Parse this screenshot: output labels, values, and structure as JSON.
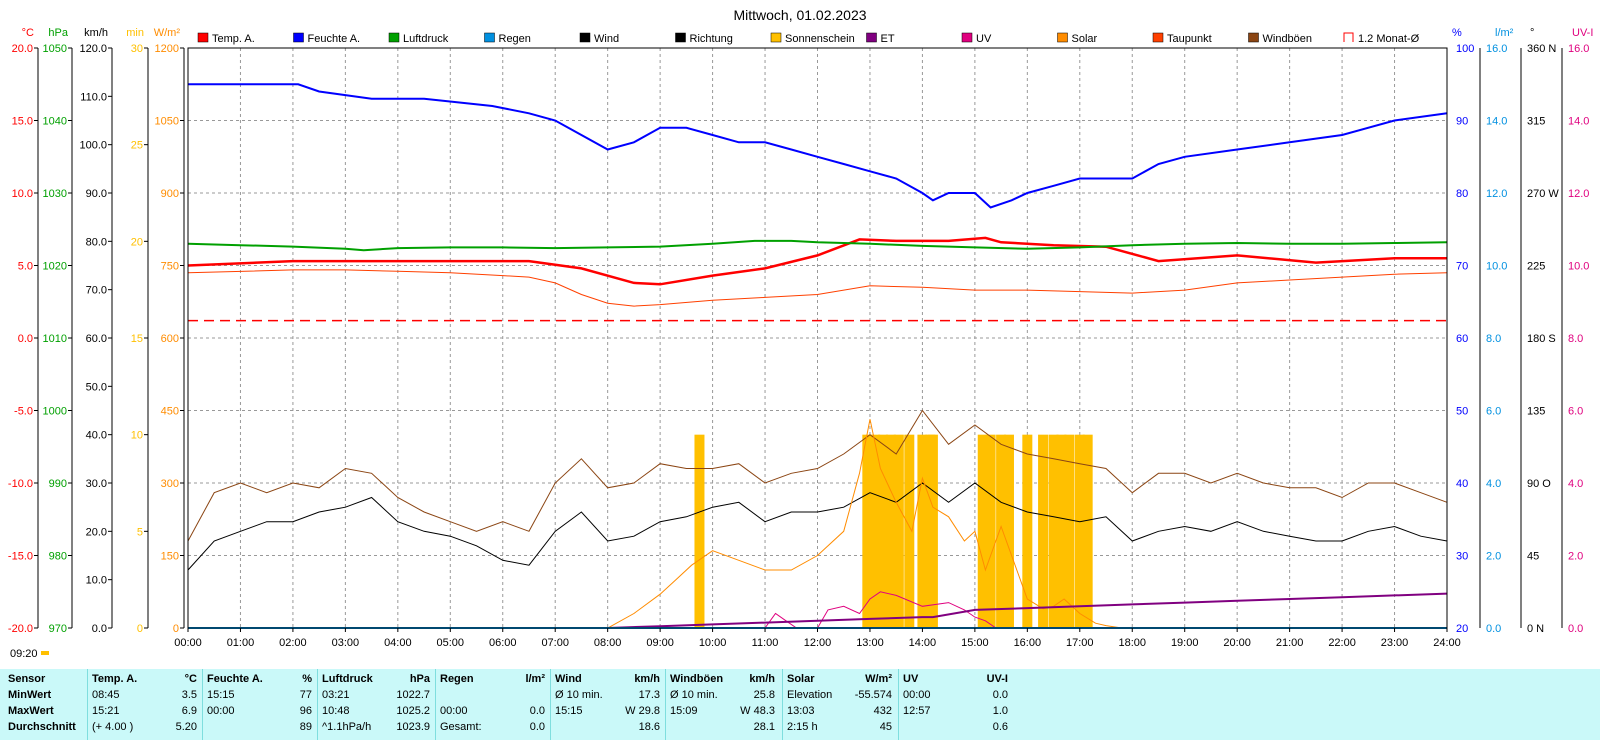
{
  "chart_data": {
    "type": "line",
    "title": "Mittwoch, 01.02.2023",
    "xticks": [
      "00:00",
      "01:00",
      "02:00",
      "03:00",
      "04:00",
      "05:00",
      "06:00",
      "07:00",
      "08:00",
      "09:00",
      "10:00",
      "11:00",
      "12:00",
      "13:00",
      "14:00",
      "15:00",
      "16:00",
      "17:00",
      "18:00",
      "19:00",
      "20:00",
      "21:00",
      "22:00",
      "23:00",
      "24:00"
    ],
    "x_range_hours": [
      0,
      24
    ],
    "grid": true,
    "legend_position": "top",
    "legend": [
      {
        "label": "Temp. A.",
        "color": "#ff0000"
      },
      {
        "label": "Feuchte A.",
        "color": "#0000ff"
      },
      {
        "label": "Luftdruck",
        "color": "#00a000"
      },
      {
        "label": "Regen",
        "color": "#0090e0"
      },
      {
        "label": "Wind",
        "color": "#000000"
      },
      {
        "label": "Richtung",
        "color": "#000000"
      },
      {
        "label": "Sonnenschein",
        "color": "#ffc000"
      },
      {
        "label": "ET",
        "color": "#800080"
      },
      {
        "label": "UV",
        "color": "#e0007f"
      },
      {
        "label": "Solar",
        "color": "#ff8c00"
      },
      {
        "label": "Taupunkt",
        "color": "#ff4000"
      },
      {
        "label": "Windböen",
        "color": "#8b4513"
      },
      {
        "label": "1.2 Monat-Ø",
        "color": "#ff0000"
      }
    ],
    "left_axes": [
      {
        "unit": "°C",
        "color": "#ff0000",
        "ticks": [
          "20.0",
          "15.0",
          "10.0",
          "5.0",
          "0.0",
          "-5.0",
          "-10.0",
          "-15.0",
          "-20.0"
        ],
        "range": [
          -20,
          20
        ]
      },
      {
        "unit": "hPa",
        "color": "#00a000",
        "ticks": [
          "1050",
          "1040",
          "1030",
          "1020",
          "1010",
          "1000",
          "990",
          "980",
          "970"
        ],
        "range": [
          970,
          1050
        ]
      },
      {
        "unit": "km/h",
        "color": "#000000",
        "ticks": [
          "120.0",
          "110.0",
          "100.0",
          "90.0",
          "80.0",
          "70.0",
          "60.0",
          "50.0",
          "40.0",
          "30.0",
          "20.0",
          "10.0",
          "0.0"
        ],
        "range": [
          0,
          120
        ]
      },
      {
        "unit": "min",
        "color": "#ffc000",
        "ticks": [
          "30",
          "25",
          "20",
          "15",
          "10",
          "5",
          "0"
        ],
        "range": [
          0,
          30
        ]
      },
      {
        "unit": "W/m²",
        "color": "#ff8c00",
        "ticks": [
          "1200",
          "1050",
          "900",
          "750",
          "600",
          "450",
          "300",
          "150",
          "0"
        ],
        "range": [
          0,
          1200
        ]
      }
    ],
    "right_axes": [
      {
        "unit": "%",
        "color": "#0000ff",
        "ticks": [
          "100",
          "90",
          "80",
          "70",
          "60",
          "50",
          "40",
          "30",
          "20"
        ],
        "range": [
          20,
          100
        ]
      },
      {
        "unit": "l/m²",
        "color": "#0090e0",
        "ticks": [
          "16.0",
          "14.0",
          "12.0",
          "10.0",
          "8.0",
          "6.0",
          "4.0",
          "2.0",
          "0.0"
        ],
        "range": [
          0,
          16
        ]
      },
      {
        "unit": "°",
        "color": "#000000",
        "ticks": [
          "360 N",
          "315",
          "270 W",
          "225",
          "180 S",
          "135",
          "90 O",
          "45",
          "0 N"
        ],
        "range": [
          0,
          360
        ]
      },
      {
        "unit": "UV-I",
        "color": "#e0007f",
        "ticks": [
          "16.0",
          "14.0",
          "12.0",
          "10.0",
          "8.0",
          "6.0",
          "4.0",
          "2.0",
          "0.0"
        ],
        "range": [
          0,
          16
        ]
      }
    ],
    "series": [
      {
        "name": "Temp. A.",
        "axis": "°C",
        "x": [
          0,
          2,
          3,
          5,
          6.5,
          7.5,
          8.5,
          9,
          10,
          11,
          12,
          12.8,
          13.5,
          14.5,
          15.2,
          15.5,
          16.5,
          17.5,
          18.5,
          20,
          21.5,
          23,
          24
        ],
        "y": [
          5.0,
          5.3,
          5.3,
          5.3,
          5.3,
          4.8,
          3.8,
          3.7,
          4.3,
          4.8,
          5.7,
          6.8,
          6.7,
          6.7,
          6.9,
          6.6,
          6.4,
          6.3,
          5.3,
          5.7,
          5.2,
          5.5,
          5.5
        ]
      },
      {
        "name": "Feuchte A.",
        "axis": "%",
        "x": [
          0,
          2.1,
          2.5,
          3.5,
          4.5,
          5.8,
          6.5,
          7.0,
          7.5,
          8.0,
          8.5,
          9.0,
          9.5,
          10.0,
          10.5,
          11.0,
          11.5,
          12.0,
          12.5,
          13.0,
          13.5,
          14.0,
          14.2,
          14.5,
          15.0,
          15.3,
          15.7,
          16.0,
          16.5,
          17.0,
          18.0,
          18.5,
          19.0,
          20.0,
          21.0,
          22.0,
          23.0,
          24.0
        ],
        "y": [
          95,
          95,
          94,
          93,
          93,
          92,
          91,
          90,
          88,
          86,
          87,
          89,
          89,
          88,
          87,
          87,
          86,
          85,
          84,
          83,
          82,
          80,
          79,
          80,
          80,
          78,
          79,
          80,
          81,
          82,
          82,
          84,
          85,
          86,
          87,
          88,
          90,
          91
        ]
      },
      {
        "name": "Luftdruck",
        "axis": "hPa",
        "x": [
          0,
          1,
          2,
          3,
          3.35,
          4,
          5,
          6,
          7,
          8,
          9,
          10,
          10.8,
          11.5,
          12,
          13,
          14,
          15,
          16,
          17,
          18,
          19,
          20,
          21,
          22,
          23,
          24
        ],
        "y": [
          1023.0,
          1022.8,
          1022.6,
          1022.3,
          1022.1,
          1022.4,
          1022.5,
          1022.5,
          1022.4,
          1022.5,
          1022.6,
          1023.0,
          1023.4,
          1023.4,
          1023.2,
          1023.0,
          1022.7,
          1022.5,
          1022.3,
          1022.5,
          1022.8,
          1023.0,
          1023.1,
          1023.0,
          1023.0,
          1023.1,
          1023.2
        ]
      },
      {
        "name": "Taupunkt",
        "axis": "°C",
        "x": [
          0,
          2,
          3,
          4,
          5,
          6,
          6.5,
          7,
          7.5,
          8,
          8.5,
          9,
          10,
          11,
          12,
          13,
          14,
          15,
          16,
          17,
          18,
          19,
          20,
          21,
          22,
          23,
          24
        ],
        "y": [
          4.5,
          4.7,
          4.7,
          4.6,
          4.5,
          4.3,
          4.2,
          3.8,
          3.0,
          2.4,
          2.2,
          2.3,
          2.6,
          2.8,
          3.0,
          3.6,
          3.5,
          3.3,
          3.3,
          3.2,
          3.1,
          3.3,
          3.8,
          4.0,
          4.2,
          4.4,
          4.5
        ]
      },
      {
        "name": "1.2 Monat-Ø",
        "axis": "°C",
        "x": [
          0,
          24
        ],
        "y": [
          1.2,
          1.2
        ]
      },
      {
        "name": "Wind",
        "axis": "km/h",
        "x": [
          0,
          0.5,
          1,
          1.5,
          2,
          2.5,
          3,
          3.5,
          4,
          4.5,
          5,
          5.5,
          6,
          6.5,
          7,
          7.5,
          8,
          8.5,
          9,
          9.5,
          10,
          10.5,
          11,
          11.5,
          12,
          12.5,
          13,
          13.5,
          14,
          14.5,
          15,
          15.5,
          16,
          16.5,
          17,
          17.5,
          18,
          18.5,
          19,
          19.5,
          20,
          20.5,
          21,
          21.5,
          22,
          22.5,
          23,
          23.5,
          24
        ],
        "y": [
          12,
          18,
          20,
          22,
          22,
          24,
          25,
          27,
          22,
          20,
          19,
          17,
          14,
          13,
          20,
          24,
          18,
          19,
          22,
          23,
          25,
          26,
          22,
          24,
          24,
          25,
          28,
          26,
          30,
          26,
          30,
          26,
          24,
          23,
          22,
          23,
          18,
          20,
          21,
          20,
          22,
          20,
          19,
          18,
          18,
          20,
          21,
          19,
          18
        ]
      },
      {
        "name": "Windböen",
        "axis": "km/h",
        "x": [
          0,
          0.5,
          1,
          1.5,
          2,
          2.5,
          3,
          3.5,
          4,
          4.5,
          5,
          5.5,
          6,
          6.5,
          7,
          7.5,
          8,
          8.5,
          9,
          9.5,
          10,
          10.5,
          11,
          11.5,
          12,
          12.5,
          13,
          13.5,
          14,
          14.5,
          15,
          15.5,
          16,
          16.5,
          17,
          17.5,
          18,
          18.5,
          19,
          19.5,
          20,
          20.5,
          21,
          21.5,
          22,
          22.5,
          23,
          23.5,
          24
        ],
        "y": [
          18,
          28,
          30,
          28,
          30,
          29,
          33,
          32,
          27,
          24,
          22,
          20,
          22,
          20,
          30,
          35,
          29,
          30,
          34,
          33,
          33,
          34,
          30,
          32,
          33,
          36,
          40,
          36,
          45,
          38,
          42,
          38,
          36,
          35,
          34,
          33,
          28,
          32,
          32,
          30,
          32,
          30,
          29,
          29,
          27,
          30,
          30,
          28,
          26
        ]
      },
      {
        "name": "Solar",
        "axis": "W/m²",
        "x": [
          8,
          8.5,
          9,
          9.3,
          9.6,
          10,
          10.5,
          11,
          11.5,
          12,
          12.5,
          12.8,
          13.0,
          13.2,
          13.5,
          13.8,
          14,
          14.2,
          14.5,
          14.8,
          15,
          15.2,
          15.5,
          15.8,
          16,
          16.3,
          16.5,
          16.7,
          17,
          17.3,
          17.5,
          17.8
        ],
        "y": [
          0,
          30,
          70,
          100,
          130,
          160,
          140,
          120,
          120,
          150,
          200,
          320,
          432,
          330,
          260,
          200,
          310,
          250,
          230,
          180,
          200,
          120,
          210,
          120,
          60,
          40,
          45,
          60,
          30,
          10,
          5,
          0
        ]
      },
      {
        "name": "UV",
        "axis": "UV-I",
        "x": [
          8,
          10,
          11.0,
          11.2,
          11.4,
          11.6,
          12,
          12.2,
          12.5,
          12.8,
          13.0,
          13.2,
          13.5,
          14,
          14.5,
          14.8,
          15,
          15.2,
          15.4,
          16
        ],
        "y": [
          0,
          0,
          0,
          0.4,
          0.2,
          0,
          0,
          0.5,
          0.6,
          0.4,
          0.8,
          1.0,
          0.9,
          0.6,
          0.7,
          0.5,
          0.3,
          0.2,
          0,
          0
        ]
      },
      {
        "name": "ET",
        "axis": "l/m²",
        "x": [
          0,
          8,
          9,
          10,
          11,
          12,
          13,
          14,
          14.2,
          15,
          16,
          17,
          18,
          19,
          20,
          21,
          22,
          23,
          24
        ],
        "y": [
          0,
          0,
          0.05,
          0.1,
          0.15,
          0.2,
          0.25,
          0.3,
          0.3,
          0.5,
          0.55,
          0.6,
          0.65,
          0.7,
          0.75,
          0.8,
          0.85,
          0.9,
          0.95
        ]
      },
      {
        "name": "Regen",
        "axis": "l/m²",
        "x": [
          0,
          24
        ],
        "y": [
          0,
          0
        ]
      },
      {
        "name": "Sonnenschein",
        "axis": "min",
        "type": "bar",
        "x": [
          9.75,
          12.95,
          13.1,
          13.25,
          13.4,
          13.55,
          13.75,
          14.0,
          14.15,
          14.2,
          15.15,
          15.3,
          15.5,
          15.65,
          16.0,
          16.3,
          16.5,
          16.65,
          16.8,
          17.0,
          17.15
        ],
        "y": [
          10,
          10,
          10,
          10,
          10,
          10,
          10,
          10,
          10,
          10,
          10,
          10,
          10,
          10,
          10,
          10,
          10,
          10,
          10,
          10,
          10
        ]
      }
    ],
    "marker_label": "09:20"
  },
  "stats": {
    "columns": [
      {
        "title": "Sensor",
        "unit": "",
        "rows": [
          {
            "label": "MinWert",
            "time": "",
            "value": ""
          },
          {
            "label": "MaxWert",
            "time": "",
            "value": ""
          },
          {
            "label": "Durchschnitt",
            "time": "",
            "value": ""
          }
        ]
      },
      {
        "title": "Temp. A.",
        "unit": "°C",
        "rows": [
          {
            "time": "08:45",
            "value": "3.5"
          },
          {
            "time": "15:21",
            "value": "6.9"
          },
          {
            "time": "(+ 4.00 )",
            "value": "5.20"
          }
        ]
      },
      {
        "title": "Feuchte A.",
        "unit": "%",
        "rows": [
          {
            "time": "15:15",
            "value": "77"
          },
          {
            "time": "00:00",
            "value": "96"
          },
          {
            "time": "",
            "value": "89"
          }
        ]
      },
      {
        "title": "Luftdruck",
        "unit": "hPa",
        "rows": [
          {
            "time": "03:21",
            "value": "1022.7"
          },
          {
            "time": "10:48",
            "value": "1025.2"
          },
          {
            "time": "^1.1hPa/h",
            "value": "1023.9"
          }
        ]
      },
      {
        "title": "Regen",
        "unit": "l/m²",
        "rows": [
          {
            "time": "",
            "value": ""
          },
          {
            "time": "00:00",
            "value": "0.0"
          },
          {
            "time": "Gesamt:",
            "value": "0.0"
          }
        ]
      },
      {
        "title": "Wind",
        "unit": "km/h",
        "rows": [
          {
            "time": "Ø 10 min.",
            "value": "17.3"
          },
          {
            "time": "15:15",
            "value": "W 29.8"
          },
          {
            "time": "",
            "value": "18.6"
          }
        ]
      },
      {
        "title": "Windböen",
        "unit": "km/h",
        "rows": [
          {
            "time": "Ø 10 min.",
            "value": "25.8"
          },
          {
            "time": "15:09",
            "value": "W 48.3"
          },
          {
            "time": "",
            "value": "28.1"
          }
        ]
      },
      {
        "title": "Solar",
        "unit": "W/m²",
        "rows": [
          {
            "time": "Elevation",
            "value": "-55.574"
          },
          {
            "time": "13:03",
            "value": "432"
          },
          {
            "time": "2:15 h",
            "value": "45"
          }
        ]
      },
      {
        "title": "UV",
        "unit": "UV-I",
        "rows": [
          {
            "time": "00:00",
            "value": "0.0"
          },
          {
            "time": "12:57",
            "value": "1.0"
          },
          {
            "time": "",
            "value": "0.6"
          }
        ]
      }
    ]
  }
}
